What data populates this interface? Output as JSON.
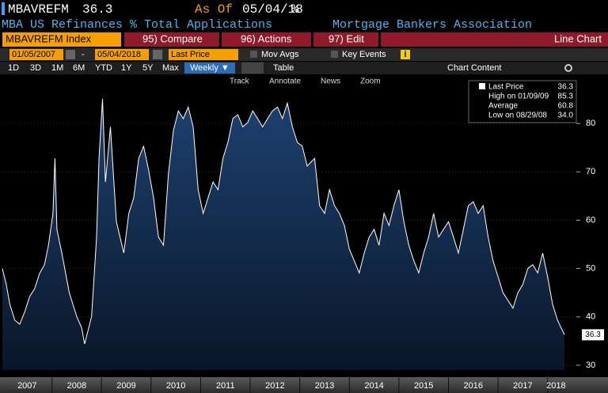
{
  "header": {
    "ticker": "MBAVREFM",
    "price": "36.3",
    "as_of_label": "As Of",
    "as_of_date": "05/04/18",
    "unit": "%",
    "description": "MBA US Refinances % Total Applications",
    "source": "Mortgage Bankers Association"
  },
  "toolbar": {
    "security": "MBAVREFM Index",
    "compare": "95) Compare",
    "actions": "96) Actions",
    "edit": "97) Edit",
    "chart_kind": "Line Chart"
  },
  "controls": {
    "start_date": "01/05/2007",
    "dash": "-",
    "end_date": "05/04/2018",
    "field": "Last Price",
    "mov_avgs": "Mov Avgs",
    "key_events": "Key Events",
    "info": "i"
  },
  "periods": [
    "1D",
    "3D",
    "1M",
    "6M",
    "YTD",
    "1Y",
    "5Y",
    "Max"
  ],
  "frequency": "Weekly ▼",
  "table": "Table",
  "chart_content": "Chart Content",
  "chart_tools": [
    "Track",
    "Annotate",
    "News",
    "Zoom"
  ],
  "chart_data": {
    "type": "area",
    "x": [
      2007.0,
      2007.08,
      2007.15,
      2007.25,
      2007.35,
      2007.45,
      2007.55,
      2007.65,
      2007.75,
      2007.85,
      2007.93,
      2008.02,
      2008.06,
      2008.1,
      2008.2,
      2008.35,
      2008.5,
      2008.6,
      2008.66,
      2008.8,
      2008.9,
      2008.95,
      2009.02,
      2009.08,
      2009.18,
      2009.3,
      2009.45,
      2009.55,
      2009.65,
      2009.75,
      2009.85,
      2009.95,
      2010.05,
      2010.15,
      2010.25,
      2010.35,
      2010.45,
      2010.55,
      2010.65,
      2010.75,
      2010.85,
      2010.95,
      2011.05,
      2011.15,
      2011.25,
      2011.35,
      2011.45,
      2011.55,
      2011.65,
      2011.75,
      2011.85,
      2011.95,
      2012.05,
      2012.15,
      2012.25,
      2012.35,
      2012.45,
      2012.55,
      2012.65,
      2012.75,
      2012.85,
      2012.95,
      2013.05,
      2013.15,
      2013.3,
      2013.4,
      2013.5,
      2013.6,
      2013.7,
      2013.8,
      2013.9,
      2014.0,
      2014.1,
      2014.2,
      2014.3,
      2014.4,
      2014.5,
      2014.6,
      2014.7,
      2014.8,
      2014.9,
      2015.0,
      2015.1,
      2015.2,
      2015.3,
      2015.4,
      2015.5,
      2015.6,
      2015.7,
      2015.8,
      2015.9,
      2016.0,
      2016.1,
      2016.2,
      2016.3,
      2016.4,
      2016.5,
      2016.6,
      2016.7,
      2016.8,
      2016.9,
      2017.0,
      2017.1,
      2017.2,
      2017.3,
      2017.4,
      2017.5,
      2017.6,
      2017.7,
      2017.8,
      2017.9,
      2018.0,
      2018.1,
      2018.2,
      2018.34
    ],
    "series": [
      {
        "name": "Last Price",
        "color": "#ffffff",
        "values": [
          50,
          46.7,
          42.6,
          39.3,
          38.5,
          41,
          44.2,
          45.8,
          49,
          50.8,
          54.8,
          61.4,
          72.8,
          58.1,
          53.2,
          45,
          40.1,
          37.7,
          34.4,
          40.1,
          56.5,
          72.8,
          85.1,
          67.9,
          79.3,
          59.7,
          53.2,
          61.4,
          64.6,
          72.8,
          75.3,
          70.4,
          64.6,
          56.5,
          54.8,
          69.5,
          78.5,
          82.6,
          81,
          83.4,
          79.3,
          66.3,
          61.4,
          64.6,
          67.9,
          66.3,
          72.8,
          76.1,
          81,
          81.8,
          79.3,
          80.2,
          82.6,
          81,
          79.3,
          81,
          82.6,
          83.4,
          81,
          84.2,
          79.3,
          76.1,
          75.3,
          71.2,
          72.8,
          63,
          61.4,
          66.3,
          63,
          61.4,
          58.9,
          54,
          51.6,
          49.1,
          53.2,
          56.5,
          58.1,
          54.8,
          61.4,
          58.9,
          63,
          66.3,
          59.7,
          54.8,
          51.6,
          49.1,
          53.2,
          56.5,
          61.4,
          56.5,
          58.1,
          59.7,
          56.5,
          53.2,
          58.1,
          63,
          63.8,
          61.4,
          63,
          56.5,
          51.6,
          48.3,
          45,
          43.4,
          41.8,
          45,
          46.7,
          50,
          50.8,
          49.1,
          53.2,
          48.3,
          42.6,
          39.3,
          36.3
        ]
      }
    ],
    "xlim": [
      2007,
      2018.34
    ],
    "xticks": [
      2007,
      2008,
      2009,
      2010,
      2011,
      2012,
      2013,
      2014,
      2015,
      2016,
      2017,
      2018
    ],
    "ylim": [
      29,
      90
    ],
    "yticks": [
      30,
      40,
      50,
      60,
      70,
      80
    ],
    "grid": true,
    "stats": [
      {
        "label": "High on 01/09/09",
        "value": "85.3"
      },
      {
        "label": "Average",
        "value": "60.8"
      },
      {
        "label": "Low on 08/29/08",
        "value": "34.0"
      }
    ]
  }
}
